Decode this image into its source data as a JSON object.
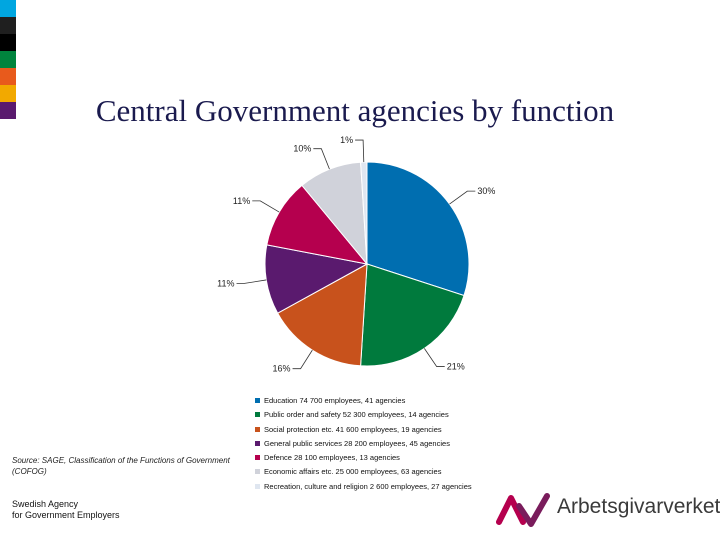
{
  "title": "Central Government agencies by function",
  "strip_colors": [
    "#00a6e0",
    "#1f1f1f",
    "#000000",
    "#00843d",
    "#e85a1c",
    "#f2a900",
    "#5a1a6e"
  ],
  "chart_data": {
    "type": "pie",
    "title": "Central Government agencies by function",
    "start_angle_deg": 0,
    "direction": "clockwise",
    "slices": [
      {
        "label": "Education 74 700 employees, 41 agencies",
        "value": 30,
        "pct_label": "30%",
        "color": "#006eb0"
      },
      {
        "label": "Public order and safety 52 300 employees, 14 agencies",
        "value": 21,
        "pct_label": "21%",
        "color": "#007a3d"
      },
      {
        "label": "Social protection etc. 41 600 employees, 19 agencies",
        "value": 16,
        "pct_label": "16%",
        "color": "#c8521c"
      },
      {
        "label": "General public services 28 200 employees, 45 agencies",
        "value": 11,
        "pct_label": "11%",
        "color": "#5a1a6e"
      },
      {
        "label": "Defence 28 100 employees, 13 agencies",
        "value": 11,
        "pct_label": "11%",
        "color": "#b5004e"
      },
      {
        "label": "Economic affairs etc. 25 000 employees, 63 agencies",
        "value": 10,
        "pct_label": "10%",
        "color": "#d0d2da"
      },
      {
        "label": "Recreation, culture and religion 2 600 employees, 27 agencies",
        "value": 1,
        "pct_label": "1%",
        "color": "#dfe6f0"
      }
    ]
  },
  "source": "Source: SAGE, Classification of the Functions of Government (COFOG)",
  "agency": {
    "line1": "Swedish Agency",
    "line2": "for Government Employers"
  },
  "logo": {
    "text": "Arbetsgivarverket",
    "colors": [
      "#b5004e",
      "#7a1c5c"
    ]
  }
}
